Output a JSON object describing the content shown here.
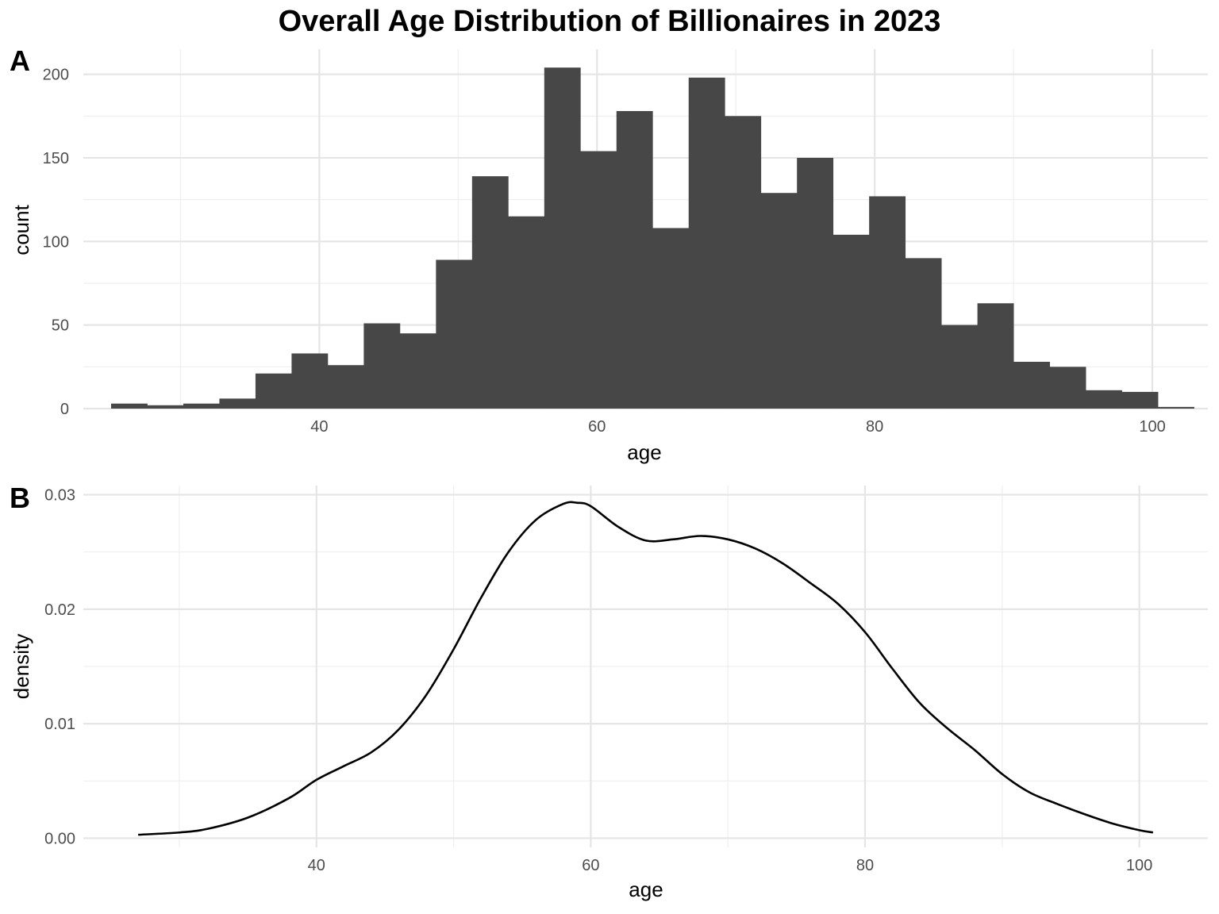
{
  "chart_data": [
    {
      "panel": "A",
      "type": "bar",
      "title": "Overall Age Distribution of Billionaires in 2023",
      "xlabel": "age",
      "ylabel": "count",
      "xlim": [
        23,
        104
      ],
      "ylim": [
        0,
        215
      ],
      "x_ticks": [
        40,
        60,
        80,
        100
      ],
      "y_ticks": [
        0,
        50,
        100,
        150,
        200
      ],
      "grid": true,
      "bin_width": 2.6,
      "bins": [
        {
          "x0": 25.0,
          "x1": 27.6,
          "count": 3
        },
        {
          "x0": 27.6,
          "x1": 30.2,
          "count": 2
        },
        {
          "x0": 30.2,
          "x1": 32.8,
          "count": 3
        },
        {
          "x0": 32.8,
          "x1": 35.4,
          "count": 6
        },
        {
          "x0": 35.4,
          "x1": 38.0,
          "count": 21
        },
        {
          "x0": 38.0,
          "x1": 40.6,
          "count": 33
        },
        {
          "x0": 40.6,
          "x1": 43.2,
          "count": 26
        },
        {
          "x0": 43.2,
          "x1": 45.8,
          "count": 51
        },
        {
          "x0": 45.8,
          "x1": 48.4,
          "count": 45
        },
        {
          "x0": 48.4,
          "x1": 51.0,
          "count": 89
        },
        {
          "x0": 51.0,
          "x1": 53.6,
          "count": 139
        },
        {
          "x0": 53.6,
          "x1": 56.2,
          "count": 115
        },
        {
          "x0": 56.2,
          "x1": 58.8,
          "count": 204
        },
        {
          "x0": 58.8,
          "x1": 61.4,
          "count": 154
        },
        {
          "x0": 61.4,
          "x1": 64.0,
          "count": 178
        },
        {
          "x0": 64.0,
          "x1": 66.6,
          "count": 108
        },
        {
          "x0": 66.6,
          "x1": 69.2,
          "count": 198
        },
        {
          "x0": 69.2,
          "x1": 71.8,
          "count": 175
        },
        {
          "x0": 71.8,
          "x1": 74.4,
          "count": 129
        },
        {
          "x0": 74.4,
          "x1": 77.0,
          "count": 150
        },
        {
          "x0": 77.0,
          "x1": 79.6,
          "count": 104
        },
        {
          "x0": 79.6,
          "x1": 82.2,
          "count": 127
        },
        {
          "x0": 82.2,
          "x1": 84.8,
          "count": 90
        },
        {
          "x0": 84.8,
          "x1": 87.4,
          "count": 50
        },
        {
          "x0": 87.4,
          "x1": 90.0,
          "count": 63
        },
        {
          "x0": 90.0,
          "x1": 92.6,
          "count": 28
        },
        {
          "x0": 92.6,
          "x1": 95.2,
          "count": 25
        },
        {
          "x0": 95.2,
          "x1": 97.8,
          "count": 11
        },
        {
          "x0": 97.8,
          "x1": 100.4,
          "count": 10
        },
        {
          "x0": 100.4,
          "x1": 103.0,
          "count": 1
        }
      ]
    },
    {
      "panel": "B",
      "type": "line",
      "xlabel": "age",
      "ylabel": "density",
      "xlim": [
        23,
        105
      ],
      "ylim": [
        -0.0008,
        0.0308
      ],
      "x_ticks": [
        40,
        60,
        80,
        100
      ],
      "y_ticks": [
        0.0,
        0.01,
        0.02,
        0.03
      ],
      "y_tick_labels": [
        "0.00",
        "0.01",
        "0.02",
        "0.03"
      ],
      "grid": true,
      "points": [
        [
          27,
          0.0003
        ],
        [
          30,
          0.0005
        ],
        [
          32,
          0.0008
        ],
        [
          35,
          0.0018
        ],
        [
          38,
          0.0035
        ],
        [
          40,
          0.0051
        ],
        [
          42,
          0.0063
        ],
        [
          44,
          0.0075
        ],
        [
          46,
          0.0095
        ],
        [
          48,
          0.0125
        ],
        [
          50,
          0.0165
        ],
        [
          52,
          0.021
        ],
        [
          54,
          0.025
        ],
        [
          56,
          0.0278
        ],
        [
          58,
          0.0292
        ],
        [
          59,
          0.0293
        ],
        [
          60,
          0.029
        ],
        [
          62,
          0.0272
        ],
        [
          64,
          0.026
        ],
        [
          66,
          0.0261
        ],
        [
          68,
          0.0264
        ],
        [
          70,
          0.0261
        ],
        [
          72,
          0.0253
        ],
        [
          74,
          0.024
        ],
        [
          76,
          0.0223
        ],
        [
          78,
          0.0205
        ],
        [
          80,
          0.018
        ],
        [
          82,
          0.0148
        ],
        [
          84,
          0.0118
        ],
        [
          86,
          0.0096
        ],
        [
          88,
          0.0077
        ],
        [
          90,
          0.0056
        ],
        [
          92,
          0.004
        ],
        [
          94,
          0.003
        ],
        [
          96,
          0.0021
        ],
        [
          98,
          0.0013
        ],
        [
          100,
          0.0007
        ],
        [
          101,
          0.0005
        ]
      ]
    }
  ]
}
